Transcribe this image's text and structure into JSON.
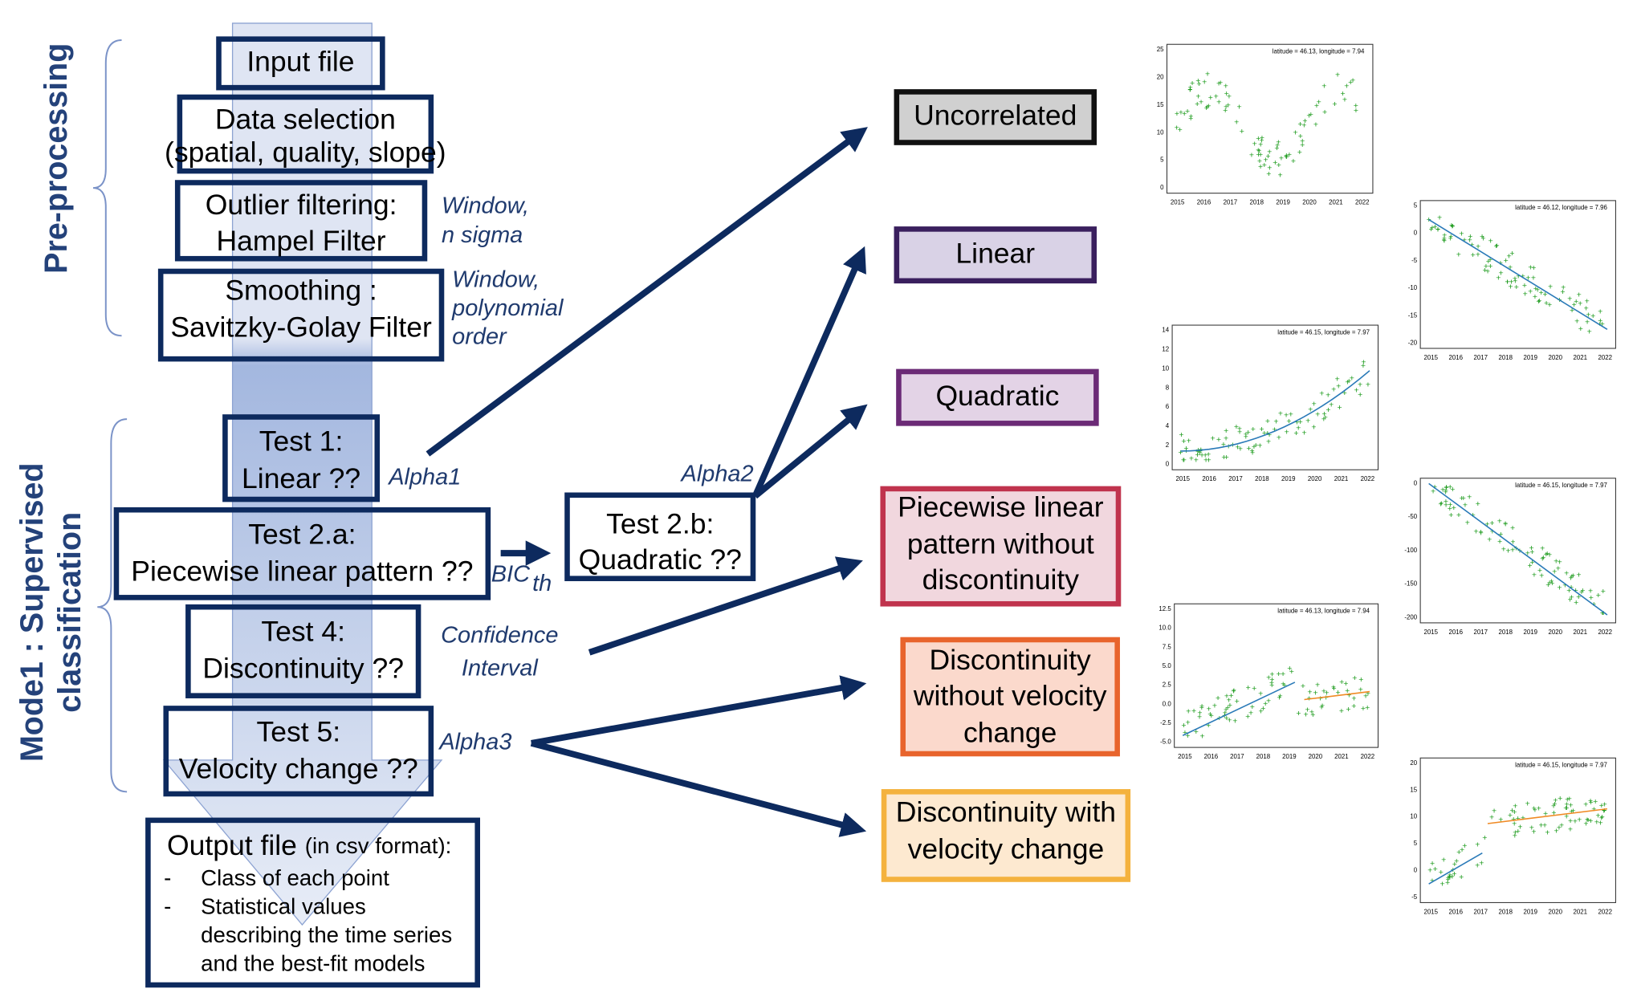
{
  "sections": [
    {
      "lines": [
        "Pre-processing"
      ]
    },
    {
      "lines": [
        "Mode1 : Supervised",
        "classification"
      ]
    }
  ],
  "steps": {
    "input": {
      "lines": [
        "Input file"
      ]
    },
    "selection": {
      "lines": [
        "Data selection"
      ],
      "note": "(spatial, quality, slope)"
    },
    "outlier": {
      "lines": [
        "Outlier filtering:",
        "Hampel Filter"
      ]
    },
    "smoothing": {
      "lines": [
        "Smoothing :",
        "Savitzky-Golay Filter"
      ]
    },
    "test1": {
      "lines": [
        "Test 1:",
        "Linear ??"
      ]
    },
    "test2a": {
      "lines": [
        "Test 2.a:",
        "Piecewise linear pattern ??"
      ]
    },
    "test4": {
      "lines": [
        "Test 4:",
        "Discontinuity ??"
      ]
    },
    "test5": {
      "lines": [
        "Test 5:",
        "Velocity change ??"
      ]
    },
    "test2b": {
      "lines": [
        "Test 2.b:",
        "Quadratic ??"
      ]
    }
  },
  "output": {
    "title": "Output file",
    "note": "(in csv format):",
    "bullets": [
      {
        "mark": "-",
        "lines": [
          "Class of each point"
        ]
      },
      {
        "mark": "-",
        "lines": [
          "Statistical values",
          "describing the time series",
          "and the best-fit models"
        ]
      }
    ]
  },
  "params": {
    "outlier": [
      "Window,",
      "n sigma"
    ],
    "smoothing": [
      "Window,",
      "polynomial",
      "order"
    ],
    "alpha1": "Alpha1",
    "bic": "BIC",
    "bic_sub": "th",
    "alpha2": "Alpha2",
    "confidence": [
      "Confidence",
      "Interval"
    ],
    "alpha3": "Alpha3"
  },
  "classes": [
    {
      "lines": [
        "Uncorrelated"
      ]
    },
    {
      "lines": [
        "Linear"
      ]
    },
    {
      "lines": [
        "Quadratic"
      ]
    },
    {
      "lines": [
        "Piecewise linear",
        "pattern without",
        "discontinuity"
      ]
    },
    {
      "lines": [
        "Discontinuity",
        "without velocity",
        "change"
      ]
    },
    {
      "lines": [
        "Discontinuity with",
        "velocity change"
      ]
    }
  ],
  "plots": [
    {
      "legend": "latitude = 46.13, longitude = 7.94",
      "yticks": [
        "0",
        "5",
        "10",
        "15",
        "20",
        "25"
      ],
      "xticks": [
        "2015",
        "2016",
        "2017",
        "2018",
        "2019",
        "2020",
        "2021",
        "2022"
      ]
    },
    {
      "legend": "latitude = 46.12, longitude = 7.96",
      "yticks": [
        "-20",
        "-15",
        "-10",
        "-5",
        "0",
        "5"
      ],
      "xticks": [
        "2015",
        "2016",
        "2017",
        "2018",
        "2019",
        "2020",
        "2021",
        "2022"
      ]
    },
    {
      "legend": "latitude = 46.15, longitude = 7.97",
      "yticks": [
        "0",
        "2",
        "4",
        "6",
        "8",
        "10",
        "12",
        "14"
      ],
      "xticks": [
        "2015",
        "2016",
        "2017",
        "2018",
        "2019",
        "2020",
        "2021",
        "2022"
      ]
    },
    {
      "legend": "latitude = 46.15, longitude = 7.97",
      "yticks": [
        "-200",
        "-150",
        "-100",
        "-50",
        "0"
      ],
      "xticks": [
        "2015",
        "2016",
        "2017",
        "2018",
        "2019",
        "2020",
        "2021",
        "2022"
      ]
    },
    {
      "legend": "latitude = 46.13, longitude = 7.94",
      "yticks": [
        "-5.0",
        "-2.5",
        "0.0",
        "2.5",
        "5.0",
        "7.5",
        "10.0",
        "12.5"
      ],
      "xticks": [
        "2015",
        "2016",
        "2017",
        "2018",
        "2019",
        "2020",
        "2021",
        "2022"
      ]
    },
    {
      "legend": "latitude = 46.15, longitude = 7.97",
      "yticks": [
        "-5",
        "0",
        "5",
        "10",
        "15",
        "20"
      ],
      "xticks": [
        "2015",
        "2016",
        "2017",
        "2018",
        "2019",
        "2020",
        "2021",
        "2022"
      ]
    }
  ]
}
